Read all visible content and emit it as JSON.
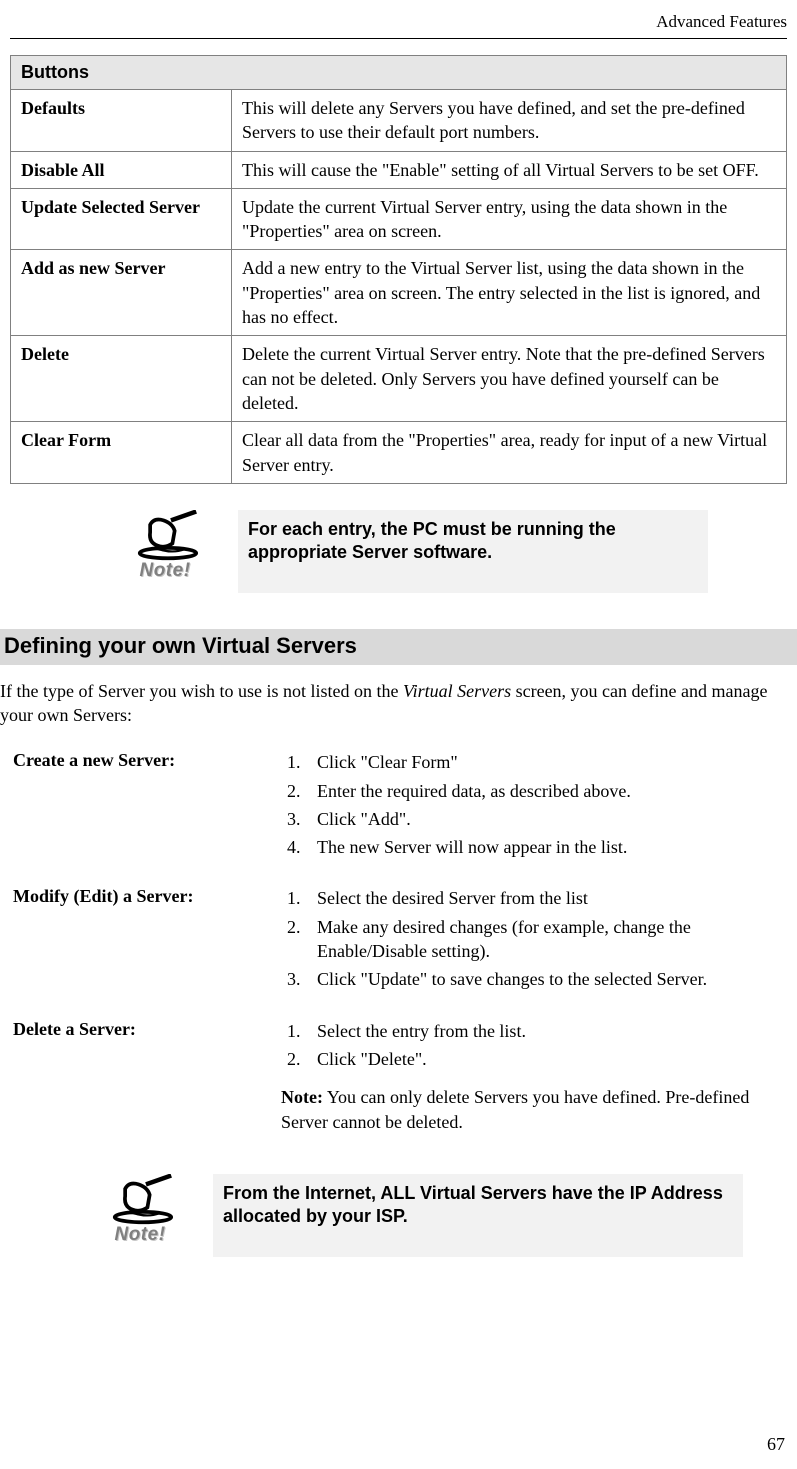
{
  "header_right": "Advanced Features",
  "page_number": "67",
  "buttons_table": {
    "header": "Buttons",
    "rows": [
      {
        "label": "Defaults",
        "desc": "This will delete any Servers you have defined, and set the pre-defined Servers to use their default port numbers."
      },
      {
        "label": "Disable All",
        "desc": "This will cause the \"Enable\" setting of all Virtual Servers to be set OFF."
      },
      {
        "label": "Update Selected Server",
        "desc": "Update the current Virtual Server entry, using the data shown in the \"Properties\" area on screen."
      },
      {
        "label": "Add as new Server",
        "desc": "Add a new entry to the Virtual Server list, using the data shown in the \"Properties\" area on screen. The entry selected in the list is ignored, and has no effect."
      },
      {
        "label": "Delete",
        "desc": "Delete the current Virtual Server entry. Note that the pre-defined Servers can not be deleted. Only Servers you have defined yourself can be deleted."
      },
      {
        "label": "Clear Form",
        "desc": "Clear all data from the \"Properties\" area, ready for input of a new Virtual Server entry."
      }
    ]
  },
  "note1": {
    "icon_label": "Note!",
    "text": "For each entry, the PC must be running the appropriate Server software."
  },
  "section_heading": "Defining your own Virtual Servers",
  "intro_html": "If the type of Server you wish to use is not listed on the <span class=\"italic\">Virtual Servers</span> screen, you can define and manage your own Servers:",
  "procedures": {
    "create": {
      "label": "Create a new Server:",
      "steps": [
        "Click \"Clear Form\"",
        "Enter the required data, as described above.",
        "Click \"Add\".",
        "The new Server will now appear in the list."
      ]
    },
    "modify": {
      "label": "Modify (Edit) a Server:",
      "steps": [
        "Select the desired Server from the list",
        "Make any desired changes (for example, change the Enable/Disable setting).",
        "Click \"Update\" to save changes to the selected Server."
      ]
    },
    "delete": {
      "label": "Delete a Server:",
      "steps": [
        "Select the entry from the list.",
        "Click \"Delete\"."
      ],
      "after_html": "<span class=\"bold\">Note:</span>  You can only delete Servers you have defined. Pre-defined Server cannot be deleted."
    }
  },
  "note2": {
    "icon_label": "Note!",
    "text": "From the Internet, ALL Virtual Servers have the IP Address allocated by your ISP."
  }
}
